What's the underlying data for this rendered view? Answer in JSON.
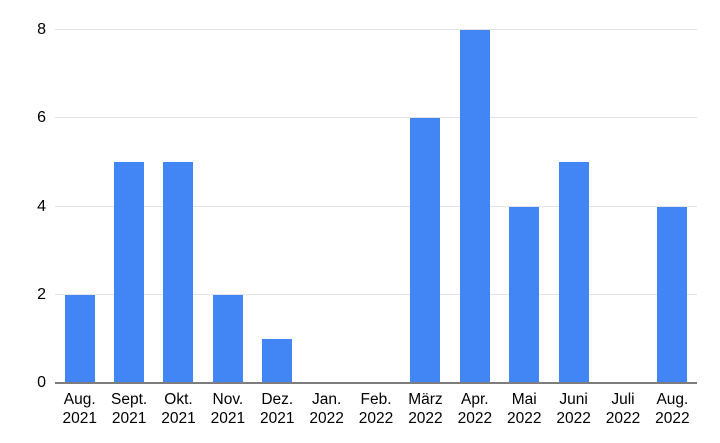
{
  "chart_data": {
    "type": "bar",
    "title": "",
    "xlabel": "",
    "ylabel": "",
    "categories": [
      "Aug. 2021",
      "Sept. 2021",
      "Okt. 2021",
      "Nov. 2021",
      "Dez. 2021",
      "Jan. 2022",
      "Feb. 2022",
      "März 2022",
      "Apr. 2022",
      "Mai 2022",
      "Juni 2022",
      "Juli 2022",
      "Aug. 2022"
    ],
    "category_lines": [
      [
        "Aug.",
        "2021"
      ],
      [
        "Sept.",
        "2021"
      ],
      [
        "Okt.",
        "2021"
      ],
      [
        "Nov.",
        "2021"
      ],
      [
        "Dez.",
        "2021"
      ],
      [
        "Jan.",
        "2022"
      ],
      [
        "Feb.",
        "2022"
      ],
      [
        "März",
        "2022"
      ],
      [
        "Apr.",
        "2022"
      ],
      [
        "Mai",
        "2022"
      ],
      [
        "Juni",
        "2022"
      ],
      [
        "Juli",
        "2022"
      ],
      [
        "Aug.",
        "2022"
      ]
    ],
    "values": [
      2,
      5,
      5,
      2,
      1,
      0,
      0,
      6,
      8,
      4,
      5,
      0,
      4
    ],
    "ylim": [
      0,
      8
    ],
    "yticks": [
      0,
      2,
      4,
      6,
      8
    ],
    "grid": true,
    "legend_position": "none"
  },
  "colors": {
    "bar": "#4285F4",
    "gridline": "#e3e3e3",
    "baseline": "#7d7d7d",
    "text": "#000000",
    "background": "#ffffff"
  }
}
